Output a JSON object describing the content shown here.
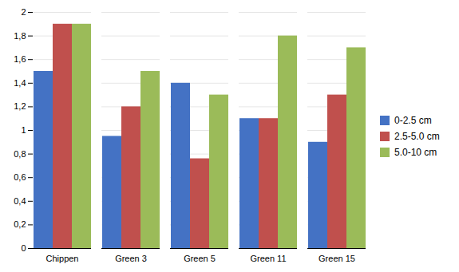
{
  "chart_data": {
    "type": "bar",
    "categories": [
      "Chippen",
      "Green 3",
      "Green 5",
      "Green 11",
      "Green 15"
    ],
    "series": [
      {
        "name": "0-2.5 cm",
        "color": "#4472C4",
        "values": [
          1.5,
          0.95,
          1.4,
          1.1,
          0.9
        ]
      },
      {
        "name": "2.5-5.0 cm",
        "color": "#C0504D",
        "values": [
          1.9,
          1.2,
          0.76,
          1.1,
          1.3
        ]
      },
      {
        "name": "5.0-10 cm",
        "color": "#9BBB59",
        "values": [
          1.9,
          1.5,
          1.3,
          1.8,
          1.7
        ]
      }
    ],
    "ylim": [
      0,
      2.0
    ],
    "yticks": [
      0,
      {
        "value": 0.2,
        "label": "0,2"
      },
      {
        "value": 0.4,
        "label": "0,4"
      },
      {
        "value": 0.6,
        "label": "0,6"
      },
      {
        "value": 0.8,
        "label": "0,8"
      },
      1,
      {
        "value": 1.2,
        "label": "1,2"
      },
      {
        "value": 1.4,
        "label": "1,4"
      },
      {
        "value": 1.6,
        "label": "1,6"
      },
      {
        "value": 1.8,
        "label": "1,8"
      },
      2
    ],
    "grid": true,
    "legend": "right"
  }
}
